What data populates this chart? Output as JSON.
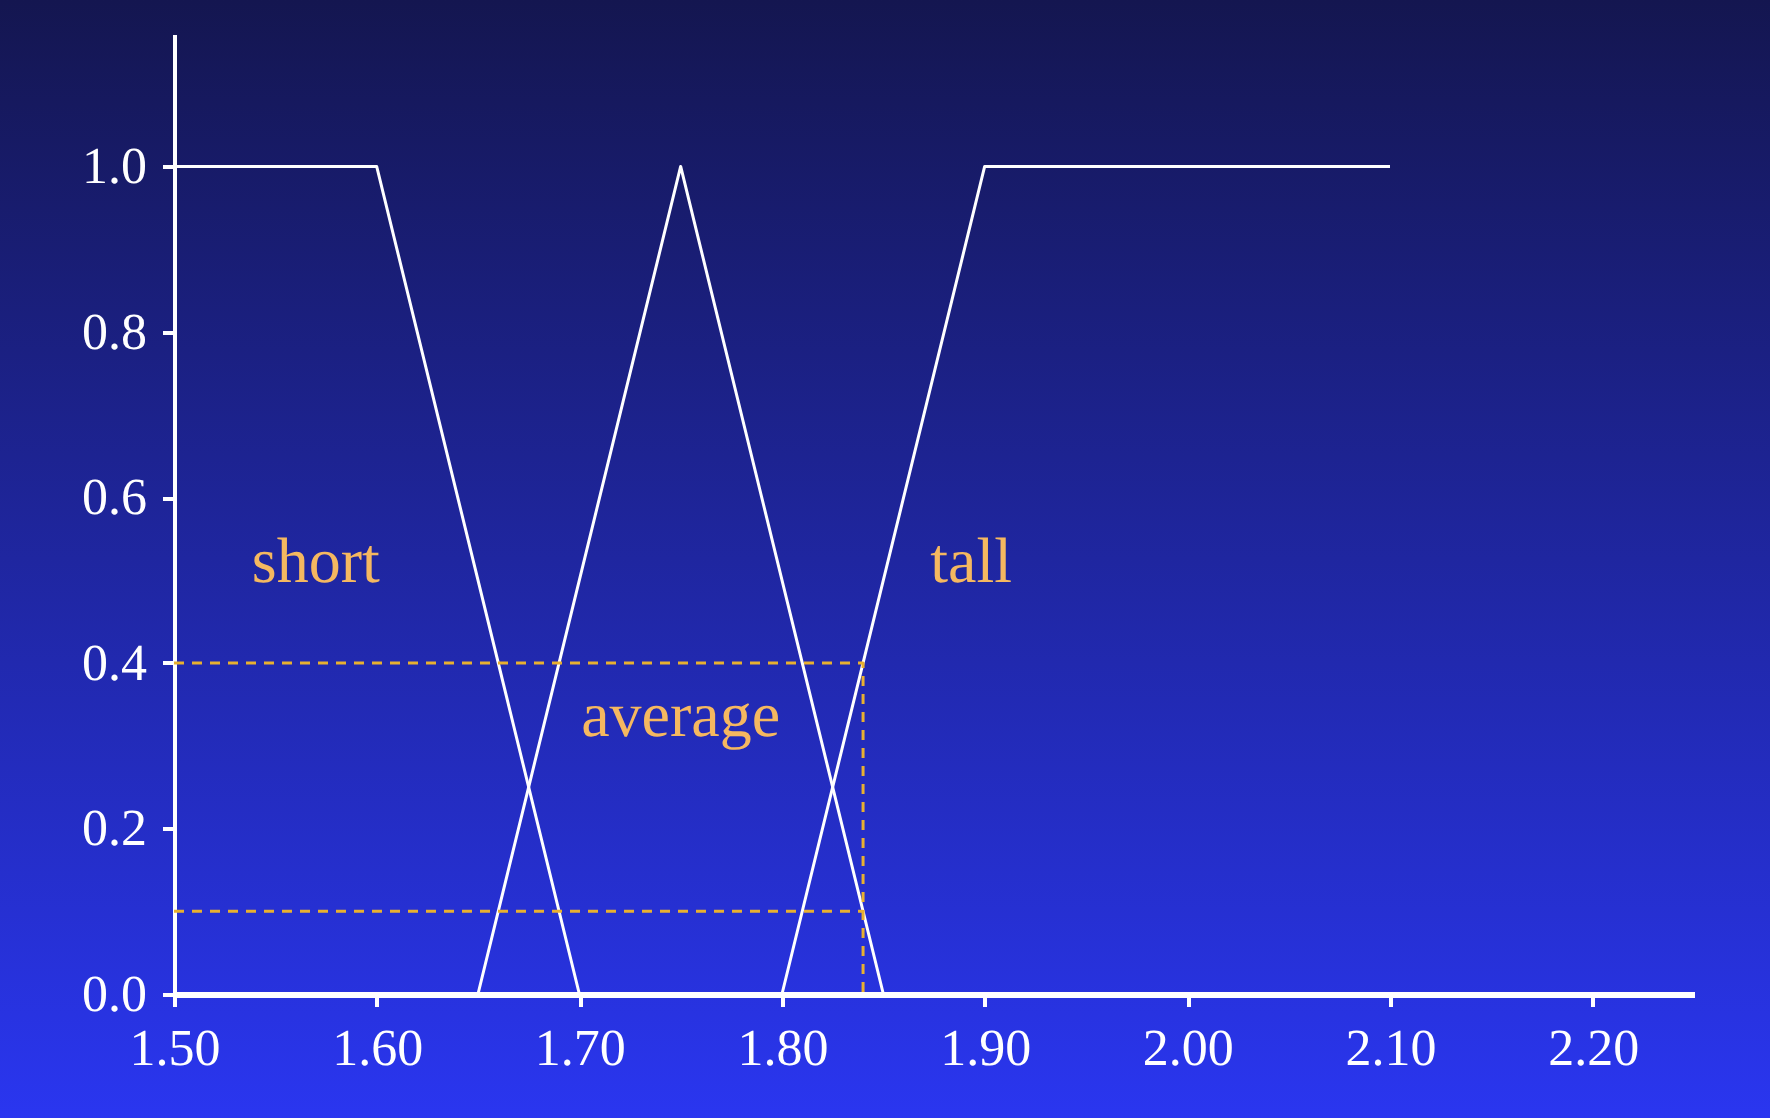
{
  "chart_data": {
    "type": "line",
    "xlim": [
      1.5,
      2.25
    ],
    "ylim": [
      0,
      1.16
    ],
    "xticks": [
      {
        "value": 1.5,
        "label": "1.50"
      },
      {
        "value": 1.6,
        "label": "1.60"
      },
      {
        "value": 1.7,
        "label": "1.70"
      },
      {
        "value": 1.8,
        "label": "1.80"
      },
      {
        "value": 1.9,
        "label": "1.90"
      },
      {
        "value": 2.0,
        "label": "2.00"
      },
      {
        "value": 2.1,
        "label": "2.10"
      },
      {
        "value": 2.2,
        "label": "2.20"
      }
    ],
    "yticks": [
      {
        "value": 0,
        "label": "0.0"
      },
      0.2,
      0.4,
      0.6,
      0.8,
      {
        "value": 1,
        "label": "1.0"
      }
    ],
    "marker": "none",
    "series": [
      {
        "name": "short",
        "color": "#ffffff",
        "x": [
          1.5,
          1.6,
          1.7
        ],
        "values": [
          1,
          1,
          0
        ]
      },
      {
        "name": "average",
        "color": "#ffffff",
        "x": [
          1.65,
          1.75,
          1.85
        ],
        "values": [
          0,
          1,
          0
        ]
      },
      {
        "name": "tall",
        "color": "#ffffff",
        "x": [
          1.8,
          1.9,
          2.1
        ],
        "values": [
          0,
          1,
          1
        ]
      },
      {
        "color": "#e8b030",
        "line_style": "dashed",
        "x": [
          1.5,
          1.84,
          1.84
        ],
        "values": [
          0.4,
          0.4,
          0
        ]
      },
      {
        "color": "#e8b030",
        "line_style": "dashed",
        "x": [
          1.5,
          1.84
        ],
        "values": [
          0.1,
          0.1
        ]
      }
    ]
  }
}
